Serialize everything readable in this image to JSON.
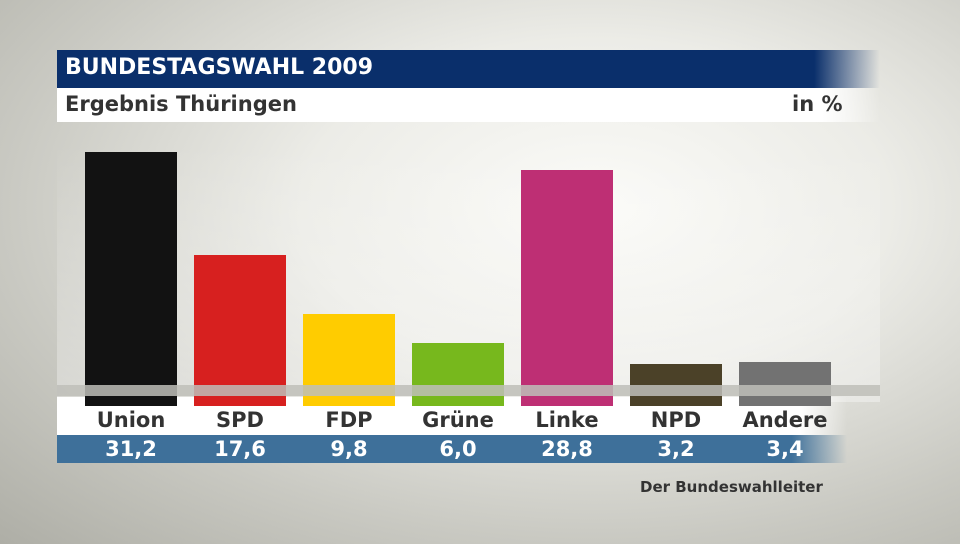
{
  "chart_data": {
    "type": "bar",
    "title": "BUNDESTAGSWAHL 2009",
    "subtitle": "Ergebnis Thüringen",
    "unit": "in %",
    "categories": [
      "Union",
      "SPD",
      "FDP",
      "Grüne",
      "Linke",
      "NPD",
      "Andere"
    ],
    "values": [
      31.2,
      17.6,
      9.8,
      6.0,
      28.8,
      3.2,
      3.4
    ],
    "value_labels": [
      "31,2",
      "17,6",
      "9,8",
      "6,0",
      "28,8",
      "3,2",
      "3,4"
    ],
    "colors": [
      "#121212",
      "#d7201f",
      "#ffcc00",
      "#77b81d",
      "#be2f74",
      "#4b4128",
      "#727272"
    ],
    "source": "Der Bundeswahlleiter",
    "ylim": [
      0,
      33
    ]
  }
}
